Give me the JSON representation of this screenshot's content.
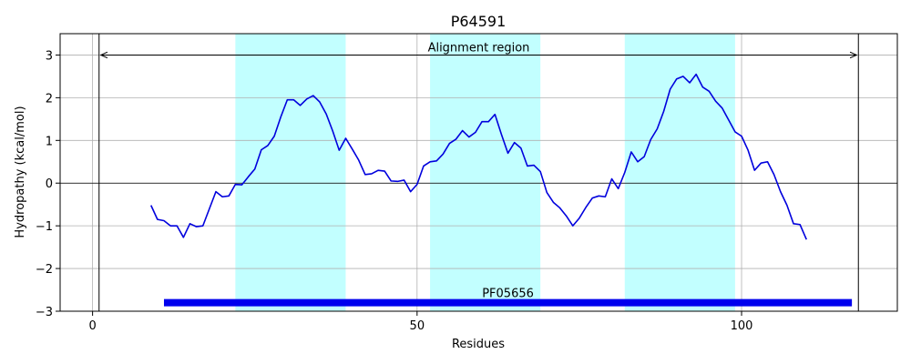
{
  "chart_data": {
    "type": "line",
    "title": "P64591",
    "xlabel": "Residues",
    "ylabel": "Hydropathy (kcal/mol)",
    "xlim": [
      -5,
      124
    ],
    "ylim": [
      -3,
      3.5
    ],
    "xticks": [
      0,
      50,
      100
    ],
    "yticks": [
      -3,
      -2,
      -1,
      0,
      1,
      2,
      3
    ],
    "grid": true,
    "series": [
      {
        "color": "#0000dd",
        "x": [
          9,
          10,
          11,
          12,
          13,
          14,
          15,
          16,
          17,
          18,
          19,
          20,
          21,
          22,
          23,
          24,
          25,
          26,
          27,
          28,
          29,
          30,
          31,
          32,
          33,
          34,
          35,
          36,
          37,
          38,
          39,
          40,
          41,
          42,
          43,
          44,
          45,
          46,
          47,
          48,
          49,
          50,
          51,
          52,
          53,
          54,
          55,
          56,
          57,
          58,
          59,
          60,
          61,
          62,
          63,
          64,
          65,
          66,
          67,
          68,
          69,
          70,
          71,
          72,
          73,
          74,
          75,
          76,
          77,
          78,
          79,
          80,
          81,
          82,
          83,
          84,
          85,
          86,
          87,
          88,
          89,
          90,
          91,
          92,
          93,
          94,
          95,
          96,
          97,
          98,
          99,
          100,
          101,
          102,
          103,
          104,
          105,
          106,
          107,
          108,
          109,
          110
        ],
        "y": [
          -0.52,
          -0.85,
          -0.88,
          -1.0,
          -1.0,
          -1.27,
          -0.95,
          -1.02,
          -1.0,
          -0.6,
          -0.2,
          -0.32,
          -0.3,
          -0.03,
          -0.04,
          0.15,
          0.33,
          0.78,
          0.88,
          1.1,
          1.55,
          1.95,
          1.95,
          1.82,
          1.97,
          2.05,
          1.9,
          1.62,
          1.22,
          0.77,
          1.05,
          0.8,
          0.54,
          0.2,
          0.22,
          0.3,
          0.28,
          0.05,
          0.04,
          0.07,
          -0.2,
          -0.03,
          0.4,
          0.5,
          0.52,
          0.68,
          0.93,
          1.03,
          1.23,
          1.08,
          1.19,
          1.44,
          1.44,
          1.61,
          1.14,
          0.7,
          0.95,
          0.82,
          0.4,
          0.42,
          0.27,
          -0.22,
          -0.45,
          -0.58,
          -0.77,
          -1.0,
          -0.82,
          -0.57,
          -0.35,
          -0.3,
          -0.32,
          0.1,
          -0.13,
          0.25,
          0.73,
          0.5,
          0.62,
          1.02,
          1.27,
          1.68,
          2.2,
          2.44,
          2.5,
          2.35,
          2.55,
          2.25,
          2.15,
          1.92,
          1.76,
          1.48,
          1.2,
          1.1,
          0.77,
          0.3,
          0.47,
          0.5,
          0.2,
          -0.2,
          -0.52,
          -0.95,
          -0.97,
          -1.32
        ]
      }
    ],
    "shaded_regions": [
      {
        "start": 22,
        "end": 39,
        "color": "#c2ffff"
      },
      {
        "start": 52,
        "end": 69,
        "color": "#c2ffff"
      },
      {
        "start": 82,
        "end": 99,
        "color": "#c2ffff"
      }
    ],
    "vertical_lines": [
      1,
      118
    ],
    "alignment_region": {
      "label": "Alignment region",
      "start": 1,
      "end": 118,
      "y": 3
    },
    "domain_bar": {
      "label": "PF05656",
      "start": 11,
      "end": 117,
      "y": -2.8,
      "color": "#0000ee"
    },
    "hline": 0
  }
}
